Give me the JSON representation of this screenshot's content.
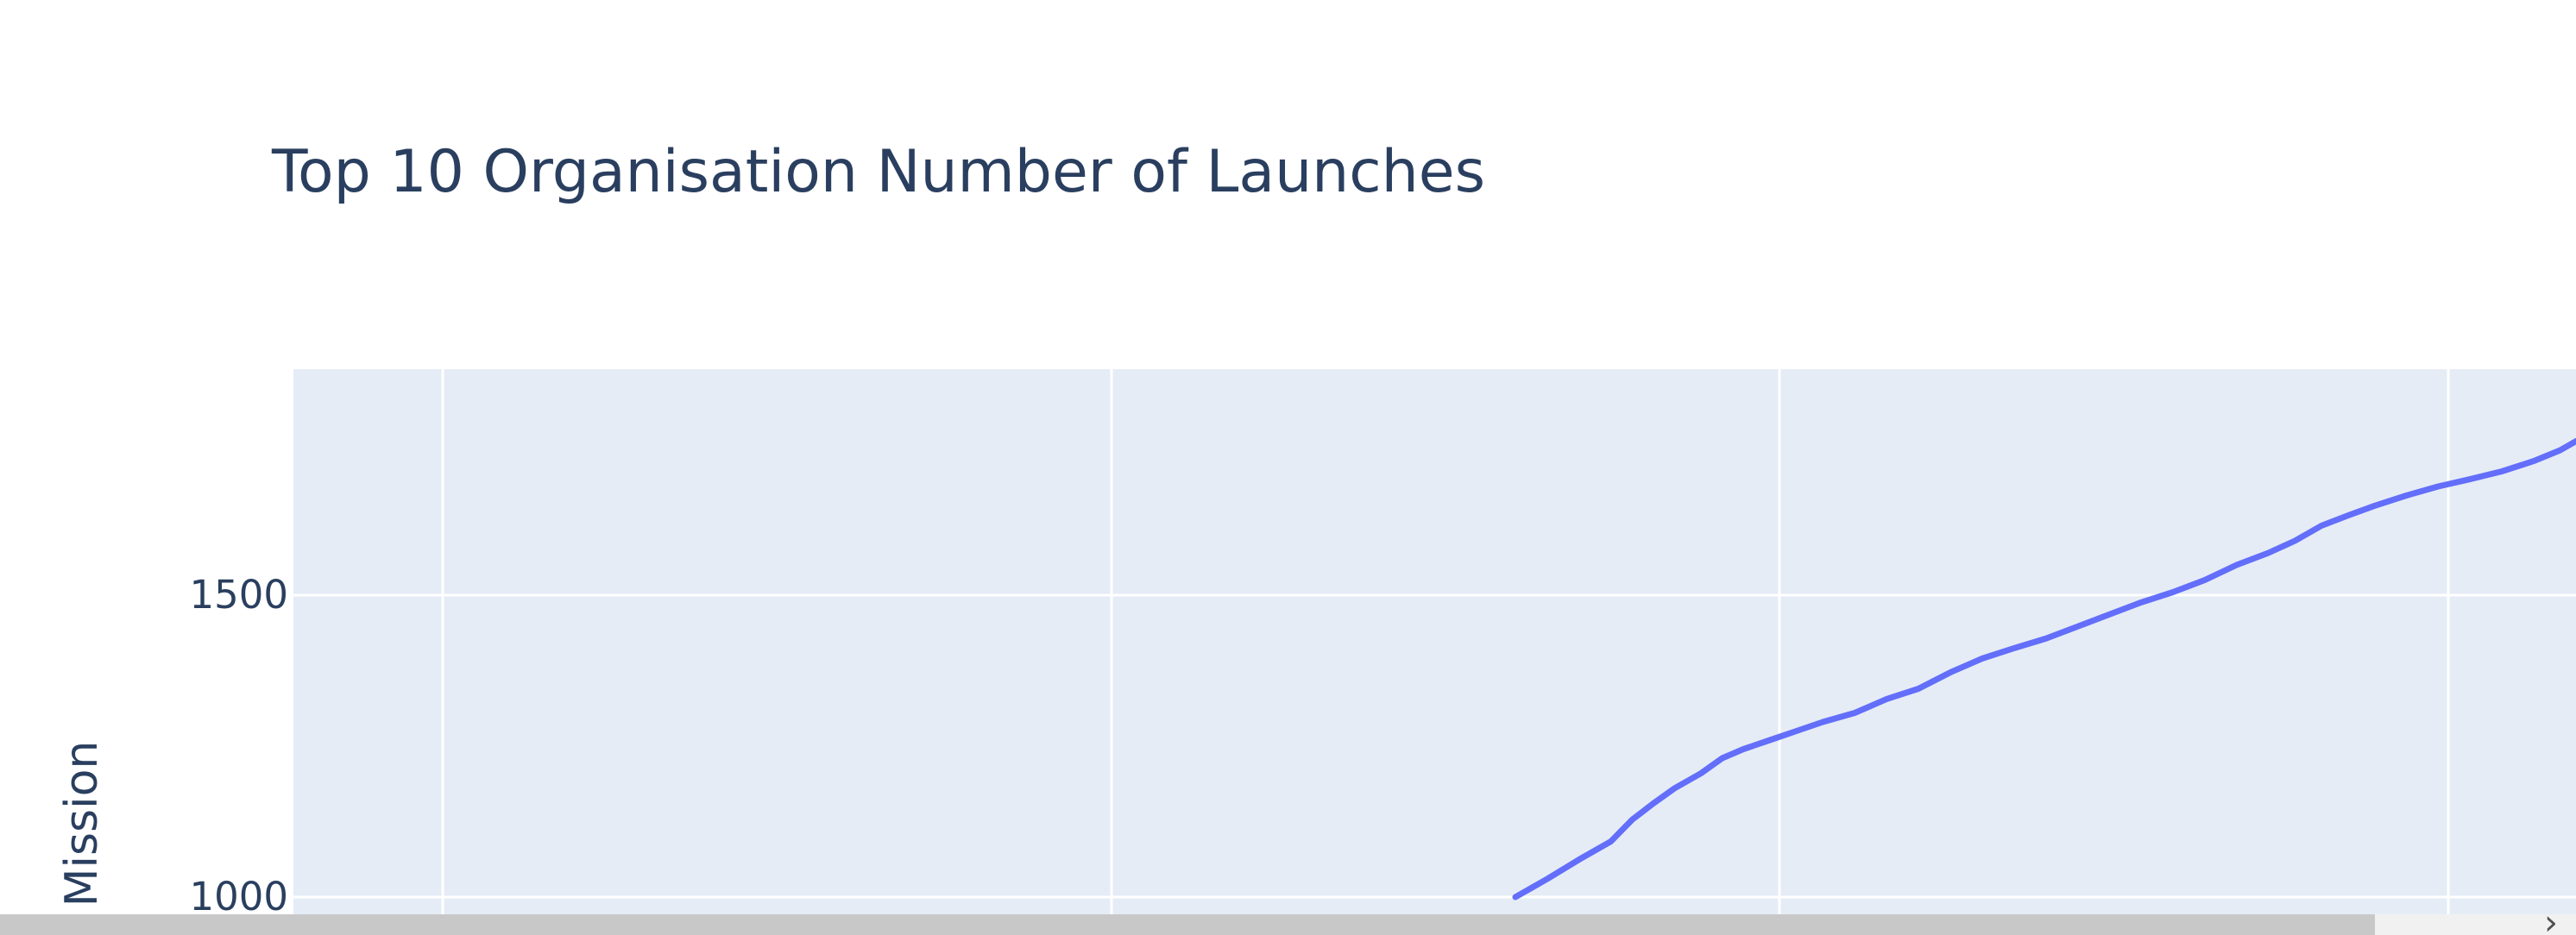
{
  "chart_data": {
    "type": "line",
    "title": "Top 10 Organisation Number of Launches",
    "ylabel": "Mission",
    "xlabel": "",
    "y_ticks": [
      1000,
      1500
    ],
    "ylim": [
      1000,
      1880
    ],
    "x_gridlines": 4,
    "grid": true,
    "colors": {
      "line": "#636efa",
      "plot_bg": "#e5ecf6",
      "grid": "#ffffff",
      "text": "#2a3f5f"
    },
    "series": [
      {
        "values": [
          [
            0.0,
            1000
          ],
          [
            0.03,
            1030
          ],
          [
            0.06,
            1062
          ],
          [
            0.09,
            1092
          ],
          [
            0.11,
            1128
          ],
          [
            0.13,
            1155
          ],
          [
            0.15,
            1180
          ],
          [
            0.175,
            1205
          ],
          [
            0.195,
            1230
          ],
          [
            0.215,
            1245
          ],
          [
            0.24,
            1260
          ],
          [
            0.265,
            1275
          ],
          [
            0.29,
            1290
          ],
          [
            0.32,
            1305
          ],
          [
            0.35,
            1328
          ],
          [
            0.38,
            1345
          ],
          [
            0.41,
            1372
          ],
          [
            0.44,
            1395
          ],
          [
            0.47,
            1412
          ],
          [
            0.5,
            1428
          ],
          [
            0.53,
            1448
          ],
          [
            0.56,
            1468
          ],
          [
            0.59,
            1488
          ],
          [
            0.62,
            1505
          ],
          [
            0.65,
            1525
          ],
          [
            0.68,
            1550
          ],
          [
            0.71,
            1570
          ],
          [
            0.735,
            1590
          ],
          [
            0.76,
            1615
          ],
          [
            0.785,
            1632
          ],
          [
            0.81,
            1648
          ],
          [
            0.84,
            1665
          ],
          [
            0.87,
            1680
          ],
          [
            0.9,
            1692
          ],
          [
            0.93,
            1705
          ],
          [
            0.96,
            1722
          ],
          [
            0.985,
            1740
          ],
          [
            1.0,
            1755
          ],
          [
            1.03,
            1762
          ]
        ]
      }
    ]
  },
  "ui": {
    "scroll_arrow": "›"
  }
}
